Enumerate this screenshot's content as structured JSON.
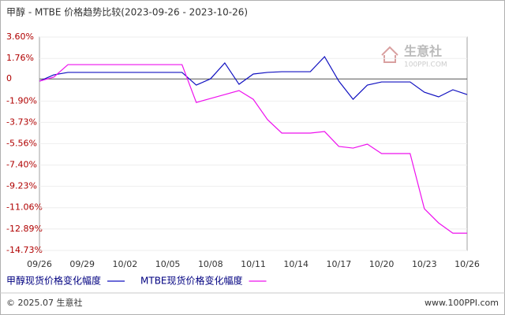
{
  "chart_data": {
    "type": "line",
    "title": "甲醇 - MTBE 价格趋势比较(2023-09-26 - 2023-10-26)",
    "categories": [
      "09/26",
      null,
      null,
      "09/29",
      null,
      null,
      "10/02",
      null,
      null,
      "10/05",
      null,
      null,
      "10/08",
      null,
      null,
      "10/11",
      null,
      null,
      "10/14",
      null,
      null,
      "10/17",
      null,
      null,
      "10/20",
      null,
      null,
      "10/23",
      null,
      null,
      "10/26"
    ],
    "series": [
      {
        "name": "甲醇现货价格变化幅度",
        "color": "#1010c0",
        "values": [
          -0.19,
          0.35,
          0.56,
          0.56,
          0.56,
          0.56,
          0.56,
          0.56,
          0.56,
          0.56,
          0.56,
          -0.53,
          0.01,
          1.37,
          -0.46,
          0.42,
          0.56,
          0.62,
          0.62,
          0.62,
          1.91,
          -0.19,
          -1.75,
          -0.53,
          -0.26,
          -0.26,
          -0.26,
          -1.14,
          -1.54,
          -0.93,
          -1.34
        ]
      },
      {
        "name": "MTBE现货价格变化幅度",
        "color": "#ee10ee",
        "values": [
          -0.19,
          0.15,
          1.23,
          1.23,
          1.23,
          1.23,
          1.23,
          1.23,
          1.23,
          1.23,
          1.23,
          -2.02,
          -1.68,
          -1.34,
          -1.0,
          -1.75,
          -3.5,
          -4.65,
          -4.65,
          -4.65,
          -4.52,
          -5.8,
          -5.94,
          -5.6,
          -6.41,
          -6.41,
          -6.41,
          -11.15,
          -12.37,
          -13.25,
          -13.25
        ]
      }
    ],
    "ylim": [
      -14.73,
      3.6
    ],
    "yticks": [
      {
        "value": 3.6,
        "label": "3.60%"
      },
      {
        "value": 1.76,
        "label": "1.76%"
      },
      0,
      {
        "value": -1.9,
        "label": "-1.90%"
      },
      {
        "value": -3.73,
        "label": "-3.73%"
      },
      {
        "value": -5.56,
        "label": "-5.56%"
      },
      {
        "value": -7.4,
        "label": "-7.40%"
      },
      {
        "value": -9.23,
        "label": "-9.23%"
      },
      {
        "value": -11.06,
        "label": "-11.06%"
      },
      {
        "value": -12.89,
        "label": "-12.89%"
      },
      {
        "value": -14.73,
        "label": "-14.73%"
      }
    ],
    "grid": true,
    "watermark": "生意社",
    "watermark_sub": "100PPI.COM",
    "footer_left": "© 2025.07 生意社",
    "footer_right": "www.100PPI.com"
  }
}
